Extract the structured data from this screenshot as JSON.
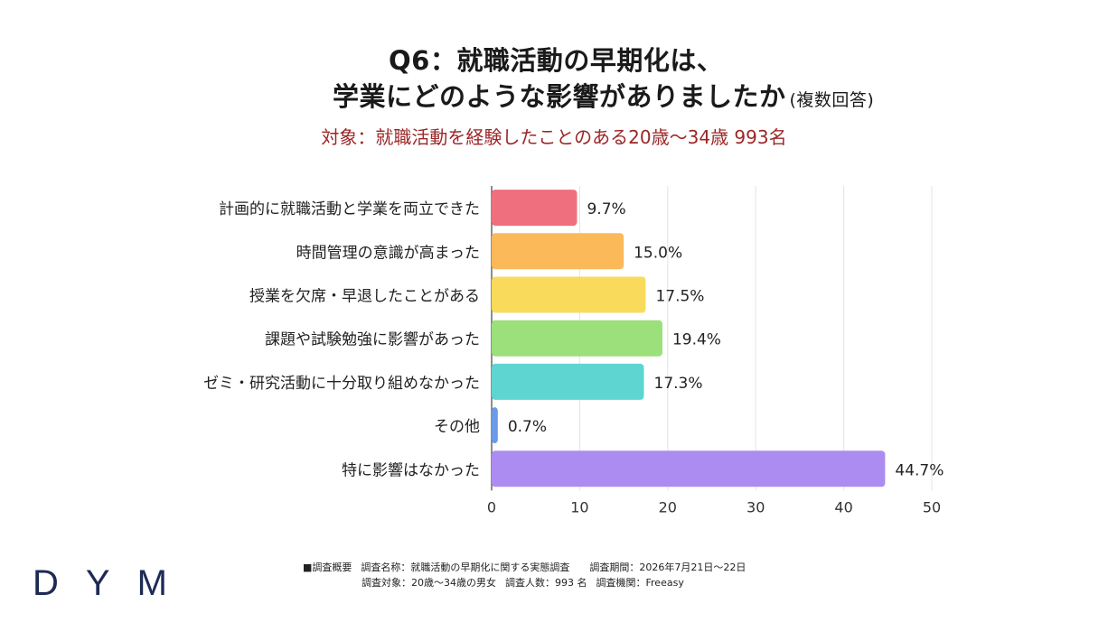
{
  "title": {
    "line1": "Q6：就職活動の早期化は、",
    "line2": "学業にどのような影響がありましたか",
    "suffix": "(複数回答)"
  },
  "subtitle": "対象：就職活動を経験したことのある20歳～34歳 993名",
  "chart_data": {
    "type": "bar",
    "orientation": "horizontal",
    "categories": [
      "計画的に就職活動と学業を両立できた",
      "時間管理の意識が高まった",
      "授業を欠席・早退したことがある",
      "課題や試験勉強に影響があった",
      "ゼミ・研究活動に十分取り組めなかった",
      "その他",
      "特に影響はなかった"
    ],
    "values": [
      9.7,
      15.0,
      17.5,
      19.4,
      17.3,
      0.7,
      44.7
    ],
    "value_labels": [
      "9.7%",
      "15.0%",
      "17.5%",
      "19.4%",
      "17.3%",
      "0.7%",
      "44.7%"
    ],
    "colors": [
      "#ef6f7e",
      "#fbb95a",
      "#fada5a",
      "#9be07a",
      "#5fd5d2",
      "#6a9be8",
      "#ad8cf2"
    ],
    "xlim": [
      0,
      50
    ],
    "xticks": [
      0,
      10,
      20,
      30,
      40,
      50
    ],
    "grid": "vertical"
  },
  "footer": {
    "survey_label": "■調査概要",
    "survey_name": "調査名称：就職活動の早期化に関する実態調査",
    "period": "調査期間：2026年7月21日～22日",
    "target": "調査対象：20歳～34歳の男女",
    "count": "調査人数：993 名",
    "agency": "調査機関：Freeasy"
  },
  "logo": "DYM",
  "colors": {
    "subtitle": "#9b2727",
    "logo": "#1e2a55"
  }
}
